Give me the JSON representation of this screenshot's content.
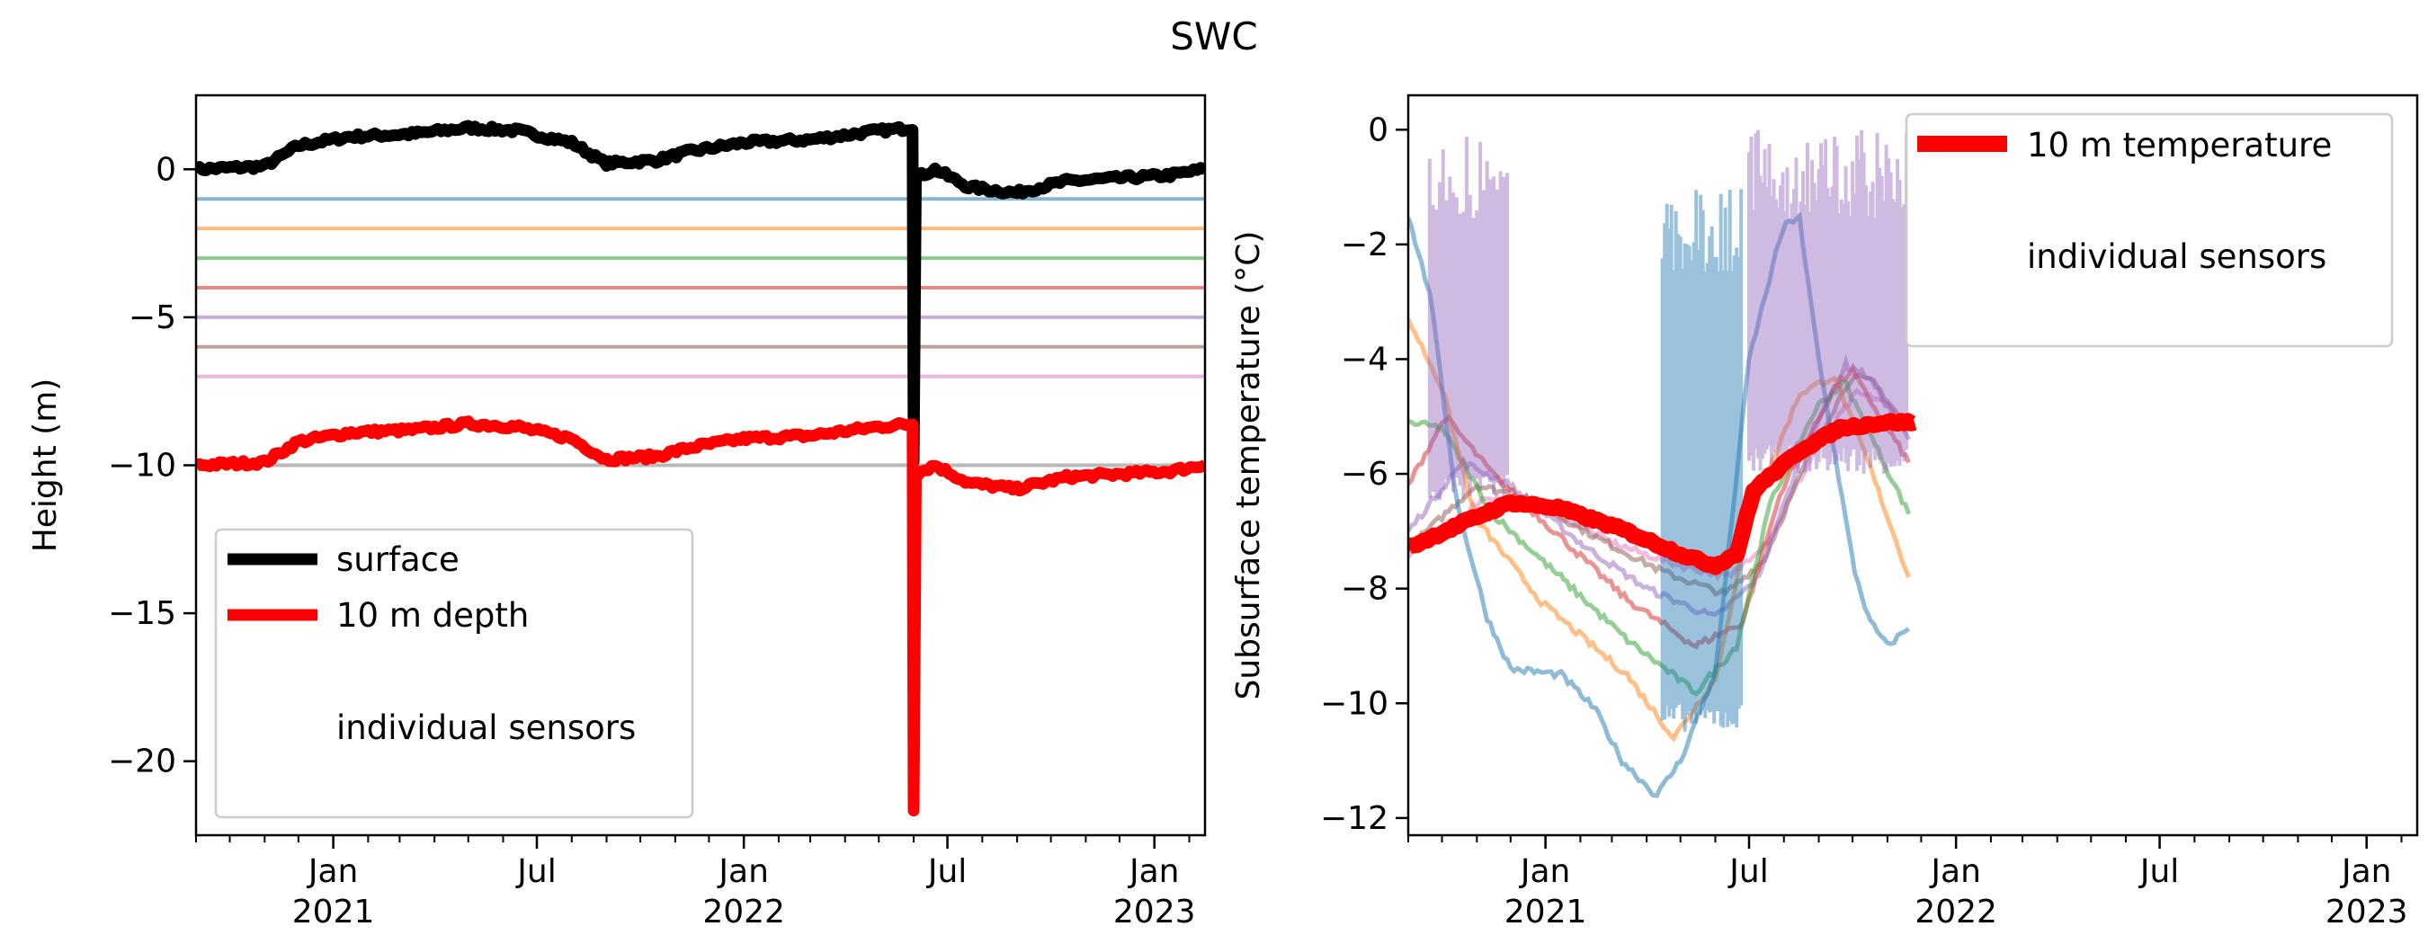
{
  "title": "SWC",
  "colors": {
    "surface": "#000000",
    "depth": "#ff0000",
    "sensors": [
      "#1f77b4",
      "#ff7f0e",
      "#2ca02c",
      "#d62728",
      "#9467bd",
      "#8c564b",
      "#e377c2",
      "#7f7f7f"
    ]
  },
  "chart_data": [
    {
      "type": "line",
      "xlabel": "",
      "ylabel": "Height (m)",
      "xlim": [
        "2020-09-01",
        "2023-02-15"
      ],
      "ylim": [
        -22.5,
        2.5
      ],
      "yticks": [
        0,
        -5,
        -10,
        -15,
        -20
      ],
      "ytick_labels": [
        "0",
        "−5",
        "−10",
        "−15",
        "−20"
      ],
      "xticks": [
        {
          "date": "2021-01-01",
          "label": [
            "Jan",
            "2021"
          ]
        },
        {
          "date": "2021-07-01",
          "label": [
            "Jul",
            ""
          ]
        },
        {
          "date": "2022-01-01",
          "label": [
            "Jan",
            "2022"
          ]
        },
        {
          "date": "2022-07-01",
          "label": [
            "Jul",
            ""
          ]
        },
        {
          "date": "2023-01-01",
          "label": [
            "Jan",
            "2023"
          ]
        }
      ],
      "legend": {
        "position": "lower-left",
        "entries": [
          "surface",
          "10 m depth",
          "individual sensors"
        ]
      },
      "series": [
        {
          "name": "surface",
          "points": [
            [
              "2020-09-01",
              0.0
            ],
            [
              "2020-11-01",
              0.1
            ],
            [
              "2020-12-01",
              0.8
            ],
            [
              "2021-01-15",
              1.1
            ],
            [
              "2021-03-15",
              1.2
            ],
            [
              "2021-05-01",
              1.4
            ],
            [
              "2021-06-15",
              1.3
            ],
            [
              "2021-08-01",
              0.9
            ],
            [
              "2021-09-01",
              0.2
            ],
            [
              "2021-10-15",
              0.3
            ],
            [
              "2021-11-15",
              0.6
            ],
            [
              "2022-01-01",
              0.9
            ],
            [
              "2022-03-01",
              1.0
            ],
            [
              "2022-05-01",
              1.3
            ],
            [
              "2022-05-31",
              1.4
            ],
            [
              "2022-06-01",
              -9.8
            ],
            [
              "2022-06-03",
              -0.3
            ],
            [
              "2022-06-20",
              0.0
            ],
            [
              "2022-07-20",
              -0.6
            ],
            [
              "2022-09-01",
              -0.8
            ],
            [
              "2022-10-15",
              -0.4
            ],
            [
              "2022-12-01",
              -0.3
            ],
            [
              "2023-01-15",
              -0.2
            ],
            [
              "2023-02-15",
              0.0
            ]
          ]
        },
        {
          "name": "10 m depth",
          "points": [
            [
              "2020-09-01",
              -10.0
            ],
            [
              "2020-11-01",
              -9.9
            ],
            [
              "2020-12-01",
              -9.2
            ],
            [
              "2021-01-15",
              -8.9
            ],
            [
              "2021-03-15",
              -8.8
            ],
            [
              "2021-05-01",
              -8.6
            ],
            [
              "2021-06-15",
              -8.7
            ],
            [
              "2021-08-01",
              -9.1
            ],
            [
              "2021-09-01",
              -9.8
            ],
            [
              "2021-10-15",
              -9.7
            ],
            [
              "2021-11-15",
              -9.4
            ],
            [
              "2022-01-01",
              -9.1
            ],
            [
              "2022-03-01",
              -9.0
            ],
            [
              "2022-05-01",
              -8.7
            ],
            [
              "2022-05-31",
              -8.6
            ],
            [
              "2022-06-01",
              -21.6
            ],
            [
              "2022-06-03",
              -10.3
            ],
            [
              "2022-06-20",
              -10.0
            ],
            [
              "2022-07-20",
              -10.6
            ],
            [
              "2022-09-01",
              -10.8
            ],
            [
              "2022-10-15",
              -10.4
            ],
            [
              "2022-12-01",
              -10.3
            ],
            [
              "2023-01-15",
              -10.2
            ],
            [
              "2023-02-15",
              -10.0
            ]
          ]
        },
        {
          "name": "",
          "points": [
            [
              "2020-09-01",
              -1
            ],
            [
              "2023-02-15",
              -1
            ]
          ]
        },
        {
          "name": "",
          "points": [
            [
              "2020-09-01",
              -2
            ],
            [
              "2023-02-15",
              -2
            ]
          ]
        },
        {
          "name": "",
          "points": [
            [
              "2020-09-01",
              -3
            ],
            [
              "2023-02-15",
              -3
            ]
          ]
        },
        {
          "name": "",
          "points": [
            [
              "2020-09-01",
              -4
            ],
            [
              "2023-02-15",
              -4
            ]
          ]
        },
        {
          "name": "",
          "points": [
            [
              "2020-09-01",
              -5
            ],
            [
              "2023-02-15",
              -5
            ]
          ]
        },
        {
          "name": "",
          "points": [
            [
              "2020-09-01",
              -6
            ],
            [
              "2023-02-15",
              -6
            ]
          ]
        },
        {
          "name": "",
          "points": [
            [
              "2020-09-01",
              -7
            ],
            [
              "2023-02-15",
              -7
            ]
          ]
        },
        {
          "name": "",
          "points": [
            [
              "2020-09-01",
              -10
            ],
            [
              "2023-02-15",
              -10
            ]
          ]
        }
      ]
    },
    {
      "type": "line",
      "xlabel": "",
      "ylabel": "Subsurface temperature (°C)",
      "xlim": [
        "2020-09-01",
        "2023-02-15"
      ],
      "ylim": [
        -12.3,
        0.6
      ],
      "yticks": [
        0,
        -2,
        -4,
        -6,
        -8,
        -10,
        -12
      ],
      "ytick_labels": [
        "0",
        "−2",
        "−4",
        "−6",
        "−8",
        "−10",
        "−12"
      ],
      "xticks": [
        {
          "date": "2021-01-01",
          "label": [
            "Jan",
            "2021"
          ]
        },
        {
          "date": "2021-07-01",
          "label": [
            "Jul",
            ""
          ]
        },
        {
          "date": "2022-01-01",
          "label": [
            "Jan",
            "2022"
          ]
        },
        {
          "date": "2022-07-01",
          "label": [
            "Jul",
            ""
          ]
        },
        {
          "date": "2023-01-01",
          "label": [
            "Jan",
            "2023"
          ]
        }
      ],
      "legend": {
        "position": "upper-right",
        "entries": [
          "10 m temperature",
          "individual sensors"
        ]
      },
      "series": [
        {
          "name": "10 m temperature",
          "points": [
            [
              "2020-09-01",
              -7.3
            ],
            [
              "2020-10-15",
              -6.9
            ],
            [
              "2020-12-01",
              -6.5
            ],
            [
              "2021-01-15",
              -6.6
            ],
            [
              "2021-03-15",
              -7.0
            ],
            [
              "2021-05-01",
              -7.4
            ],
            [
              "2021-06-01",
              -7.6
            ],
            [
              "2021-06-20",
              -7.4
            ],
            [
              "2021-07-05",
              -6.3
            ],
            [
              "2021-08-15",
              -5.6
            ],
            [
              "2021-09-20",
              -5.2
            ],
            [
              "2021-11-01",
              -5.1
            ],
            [
              "2021-11-25",
              -5.1
            ]
          ]
        },
        {
          "name": "",
          "points": [
            [
              "2020-09-01",
              -1.5
            ],
            [
              "2020-09-20",
              -2.8
            ],
            [
              "2020-10-15",
              -6.5
            ],
            [
              "2020-11-10",
              -8.5
            ],
            [
              "2020-12-01",
              -9.4
            ],
            [
              "2021-01-15",
              -9.5
            ],
            [
              "2021-02-15",
              -10.1
            ],
            [
              "2021-03-10",
              -11.0
            ],
            [
              "2021-04-10",
              -11.6
            ],
            [
              "2021-05-01",
              -11.0
            ],
            [
              "2021-06-01",
              -9.5
            ],
            [
              "2021-07-01",
              -4.0
            ],
            [
              "2021-08-01",
              -1.7
            ],
            [
              "2021-08-15",
              -1.5
            ],
            [
              "2021-09-01",
              -4.0
            ],
            [
              "2021-10-01",
              -7.5
            ],
            [
              "2021-10-15",
              -8.5
            ],
            [
              "2021-11-01",
              -9.0
            ],
            [
              "2021-11-20",
              -8.7
            ]
          ]
        },
        {
          "name": "",
          "points": [
            [
              "2020-09-01",
              -3.3
            ],
            [
              "2020-10-01",
              -4.5
            ],
            [
              "2020-11-01",
              -6.8
            ],
            [
              "2021-01-01",
              -8.3
            ],
            [
              "2021-03-15",
              -9.5
            ],
            [
              "2021-04-25",
              -10.6
            ],
            [
              "2021-06-01",
              -9.6
            ],
            [
              "2021-07-01",
              -6.8
            ],
            [
              "2021-08-15",
              -4.6
            ],
            [
              "2021-09-15",
              -4.3
            ],
            [
              "2021-10-15",
              -5.8
            ],
            [
              "2021-11-20",
              -7.8
            ]
          ]
        },
        {
          "name": "",
          "points": [
            [
              "2020-09-01",
              -5.1
            ],
            [
              "2020-10-01",
              -5.2
            ],
            [
              "2020-11-15",
              -6.7
            ],
            [
              "2021-01-15",
              -7.8
            ],
            [
              "2021-03-15",
              -8.9
            ],
            [
              "2021-05-15",
              -9.8
            ],
            [
              "2021-06-20",
              -9.0
            ],
            [
              "2021-07-20",
              -6.5
            ],
            [
              "2021-09-01",
              -4.8
            ],
            [
              "2021-09-25",
              -4.4
            ],
            [
              "2021-11-20",
              -6.7
            ]
          ]
        },
        {
          "name": "",
          "points": [
            [
              "2020-09-01",
              -6.2
            ],
            [
              "2020-10-05",
              -5.0
            ],
            [
              "2020-11-15",
              -6.0
            ],
            [
              "2021-01-15",
              -7.1
            ],
            [
              "2021-03-15",
              -8.2
            ],
            [
              "2021-05-15",
              -9.0
            ],
            [
              "2021-06-25",
              -8.6
            ],
            [
              "2021-08-01",
              -6.2
            ],
            [
              "2021-09-15",
              -4.5
            ],
            [
              "2021-10-01",
              -4.2
            ],
            [
              "2021-11-20",
              -5.8
            ]
          ]
        },
        {
          "name": "",
          "points": [
            [
              "2020-09-01",
              -7.0
            ],
            [
              "2020-10-20",
              -5.8
            ],
            [
              "2020-12-01",
              -6.2
            ],
            [
              "2021-02-01",
              -7.2
            ],
            [
              "2021-04-01",
              -8.0
            ],
            [
              "2021-06-01",
              -8.5
            ],
            [
              "2021-07-10",
              -7.8
            ],
            [
              "2021-08-20",
              -5.5
            ],
            [
              "2021-09-25",
              -4.1
            ],
            [
              "2021-10-15",
              -4.3
            ],
            [
              "2021-11-20",
              -5.4
            ]
          ]
        },
        {
          "name": "",
          "points": [
            [
              "2020-09-01",
              -7.3
            ],
            [
              "2020-11-01",
              -6.2
            ],
            [
              "2020-12-15",
              -6.4
            ],
            [
              "2021-02-15",
              -7.1
            ],
            [
              "2021-04-15",
              -7.7
            ],
            [
              "2021-06-10",
              -8.1
            ],
            [
              "2021-07-15",
              -7.5
            ],
            [
              "2021-08-25",
              -5.6
            ],
            [
              "2021-10-01",
              -4.3
            ],
            [
              "2021-10-20",
              -4.4
            ],
            [
              "2021-11-20",
              -5.2
            ]
          ]
        },
        {
          "name": "",
          "points": [
            [
              "2020-09-01",
              -7.4
            ],
            [
              "2020-11-10",
              -6.4
            ],
            [
              "2021-01-01",
              -6.6
            ],
            [
              "2021-03-01",
              -7.2
            ],
            [
              "2021-05-01",
              -7.6
            ],
            [
              "2021-06-15",
              -7.8
            ],
            [
              "2021-07-20",
              -7.1
            ],
            [
              "2021-09-01",
              -5.5
            ],
            [
              "2021-10-05",
              -4.6
            ],
            [
              "2021-10-25",
              -4.7
            ],
            [
              "2021-11-20",
              -5.1
            ]
          ]
        }
      ]
    }
  ]
}
